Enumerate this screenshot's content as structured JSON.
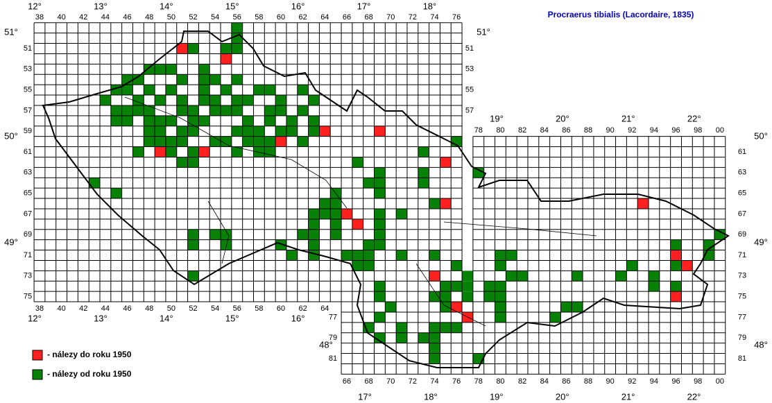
{
  "title": "Procraerus tibialis (Lacordaire, 1835)",
  "legend": [
    {
      "label": "- nálezy do roku 1950",
      "color": "#ff2020"
    },
    {
      "label": "- nálezy od roku 1950",
      "color": "#078207"
    }
  ],
  "column_labels_west_top": [
    "38",
    "40",
    "42",
    "44",
    "46",
    "48",
    "50",
    "52",
    "54",
    "56",
    "58",
    "60",
    "62",
    "64",
    "66",
    "68",
    "70",
    "72",
    "74",
    "76"
  ],
  "column_labels_west_bottom": [
    "38",
    "40",
    "42",
    "44",
    "46",
    "48",
    "50",
    "52",
    "54",
    "56",
    "58",
    "60",
    "62",
    "64"
  ],
  "column_labels_east_top": [
    "78",
    "80",
    "82",
    "84",
    "86",
    "88",
    "90",
    "92",
    "94",
    "96",
    "98",
    "00"
  ],
  "column_labels_east_bottom": [
    "66",
    "68",
    "70",
    "72",
    "74",
    "76",
    "78",
    "80",
    "82",
    "84",
    "86",
    "88",
    "90",
    "92",
    "94",
    "96",
    "98",
    "00"
  ],
  "row_labels_west_left": [
    "51",
    "53",
    "55",
    "57",
    "59",
    "61",
    "63",
    "65",
    "67",
    "69",
    "71",
    "73",
    "75"
  ],
  "row_labels_west_right": [
    "51",
    "53",
    "55",
    "57"
  ],
  "row_labels_east_left": [
    "77",
    "79",
    "81"
  ],
  "row_labels_east_right": [
    "61",
    "63",
    "65",
    "67",
    "69",
    "71",
    "73",
    "75",
    "77",
    "79",
    "81"
  ],
  "degrees_west_top": [
    "12°",
    "13°",
    "14°",
    "15°",
    "16°",
    "17°",
    "18°"
  ],
  "degrees_west_bottom": [
    "12°",
    "13°",
    "14°",
    "15°",
    "16°"
  ],
  "degrees_east_top": [
    "19°",
    "20°",
    "21°",
    "22°"
  ],
  "degrees_east_bottom": [
    "17°",
    "18°",
    "19°",
    "20°",
    "21°",
    "22°"
  ],
  "degrees_left": [
    "51°",
    "50°",
    "49°",
    "48°"
  ],
  "degrees_right": [
    "51°",
    "50°",
    "49°",
    "48°"
  ],
  "squares": {
    "before_1950": [
      [
        51,
        51
      ],
      [
        55,
        52
      ],
      [
        64,
        59
      ],
      [
        69,
        59
      ],
      [
        60,
        60
      ],
      [
        49,
        61
      ],
      [
        53,
        61
      ],
      [
        75,
        62
      ],
      [
        75,
        66
      ],
      [
        66,
        67
      ],
      [
        67,
        68
      ],
      [
        93,
        66
      ],
      [
        96,
        71
      ],
      [
        97,
        72
      ],
      [
        96,
        75
      ],
      [
        74,
        73
      ],
      [
        76,
        76
      ],
      [
        77,
        77
      ]
    ],
    "since_1950": [
      [
        56,
        49
      ],
      [
        56,
        50
      ],
      [
        52,
        51
      ],
      [
        55,
        51
      ],
      [
        56,
        51
      ],
      [
        48,
        53
      ],
      [
        49,
        53
      ],
      [
        50,
        53
      ],
      [
        53,
        53
      ],
      [
        46,
        54
      ],
      [
        47,
        54
      ],
      [
        51,
        54
      ],
      [
        53,
        54
      ],
      [
        54,
        54
      ],
      [
        56,
        54
      ],
      [
        45,
        55
      ],
      [
        46,
        55
      ],
      [
        48,
        55
      ],
      [
        50,
        55
      ],
      [
        53,
        55
      ],
      [
        55,
        55
      ],
      [
        58,
        55
      ],
      [
        59,
        55
      ],
      [
        62,
        55
      ],
      [
        44,
        56
      ],
      [
        47,
        56
      ],
      [
        49,
        56
      ],
      [
        51,
        56
      ],
      [
        53,
        56
      ],
      [
        54,
        56
      ],
      [
        56,
        56
      ],
      [
        57,
        56
      ],
      [
        60,
        56
      ],
      [
        63,
        56
      ],
      [
        45,
        57
      ],
      [
        46,
        57
      ],
      [
        47,
        57
      ],
      [
        48,
        57
      ],
      [
        51,
        57
      ],
      [
        52,
        57
      ],
      [
        54,
        57
      ],
      [
        55,
        57
      ],
      [
        56,
        57
      ],
      [
        59,
        57
      ],
      [
        60,
        57
      ],
      [
        62,
        57
      ],
      [
        45,
        58
      ],
      [
        46,
        58
      ],
      [
        48,
        58
      ],
      [
        49,
        58
      ],
      [
        50,
        58
      ],
      [
        52,
        58
      ],
      [
        53,
        58
      ],
      [
        57,
        58
      ],
      [
        59,
        58
      ],
      [
        61,
        58
      ],
      [
        63,
        58
      ],
      [
        48,
        59
      ],
      [
        49,
        59
      ],
      [
        51,
        59
      ],
      [
        52,
        59
      ],
      [
        56,
        59
      ],
      [
        57,
        59
      ],
      [
        58,
        59
      ],
      [
        60,
        59
      ],
      [
        61,
        59
      ],
      [
        63,
        59
      ],
      [
        48,
        60
      ],
      [
        49,
        60
      ],
      [
        50,
        60
      ],
      [
        51,
        60
      ],
      [
        54,
        60
      ],
      [
        55,
        60
      ],
      [
        57,
        60
      ],
      [
        58,
        60
      ],
      [
        59,
        60
      ],
      [
        62,
        60
      ],
      [
        76,
        60
      ],
      [
        47,
        61
      ],
      [
        50,
        61
      ],
      [
        52,
        61
      ],
      [
        56,
        61
      ],
      [
        58,
        61
      ],
      [
        59,
        61
      ],
      [
        73,
        61
      ],
      [
        51,
        62
      ],
      [
        52,
        62
      ],
      [
        67,
        62
      ],
      [
        69,
        63
      ],
      [
        73,
        63
      ],
      [
        78,
        63
      ],
      [
        43,
        64
      ],
      [
        68,
        64
      ],
      [
        69,
        64
      ],
      [
        73,
        64
      ],
      [
        45,
        65
      ],
      [
        65,
        65
      ],
      [
        69,
        65
      ],
      [
        64,
        66
      ],
      [
        65,
        66
      ],
      [
        74,
        66
      ],
      [
        63,
        67
      ],
      [
        64,
        67
      ],
      [
        65,
        67
      ],
      [
        69,
        67
      ],
      [
        71,
        67
      ],
      [
        63,
        68
      ],
      [
        65,
        68
      ],
      [
        69,
        68
      ],
      [
        52,
        69
      ],
      [
        54,
        69
      ],
      [
        55,
        69
      ],
      [
        62,
        69
      ],
      [
        63,
        69
      ],
      [
        65,
        69
      ],
      [
        69,
        69
      ],
      [
        100,
        69
      ],
      [
        52,
        70
      ],
      [
        55,
        70
      ],
      [
        60,
        70
      ],
      [
        63,
        70
      ],
      [
        68,
        70
      ],
      [
        69,
        70
      ],
      [
        96,
        70
      ],
      [
        99,
        70
      ],
      [
        61,
        71
      ],
      [
        63,
        71
      ],
      [
        66,
        71
      ],
      [
        67,
        71
      ],
      [
        68,
        71
      ],
      [
        71,
        71
      ],
      [
        74,
        71
      ],
      [
        80,
        71
      ],
      [
        81,
        71
      ],
      [
        99,
        71
      ],
      [
        67,
        72
      ],
      [
        68,
        72
      ],
      [
        76,
        72
      ],
      [
        80,
        72
      ],
      [
        92,
        72
      ],
      [
        96,
        72
      ],
      [
        52,
        73
      ],
      [
        77,
        73
      ],
      [
        81,
        73
      ],
      [
        82,
        73
      ],
      [
        87,
        73
      ],
      [
        91,
        73
      ],
      [
        94,
        73
      ],
      [
        69,
        74
      ],
      [
        75,
        74
      ],
      [
        76,
        74
      ],
      [
        77,
        74
      ],
      [
        79,
        74
      ],
      [
        80,
        74
      ],
      [
        94,
        74
      ],
      [
        96,
        74
      ],
      [
        69,
        75
      ],
      [
        74,
        75
      ],
      [
        75,
        75
      ],
      [
        77,
        75
      ],
      [
        79,
        75
      ],
      [
        80,
        75
      ],
      [
        70,
        76
      ],
      [
        75,
        76
      ],
      [
        80,
        76
      ],
      [
        86,
        76
      ],
      [
        87,
        76
      ],
      [
        69,
        77
      ],
      [
        80,
        77
      ],
      [
        85,
        77
      ],
      [
        68,
        78
      ],
      [
        71,
        78
      ],
      [
        74,
        78
      ],
      [
        75,
        78
      ],
      [
        76,
        78
      ],
      [
        69,
        79
      ],
      [
        71,
        79
      ],
      [
        73,
        79
      ],
      [
        74,
        79
      ],
      [
        74,
        80
      ],
      [
        74,
        81
      ],
      [
        78,
        81
      ]
    ]
  }
}
